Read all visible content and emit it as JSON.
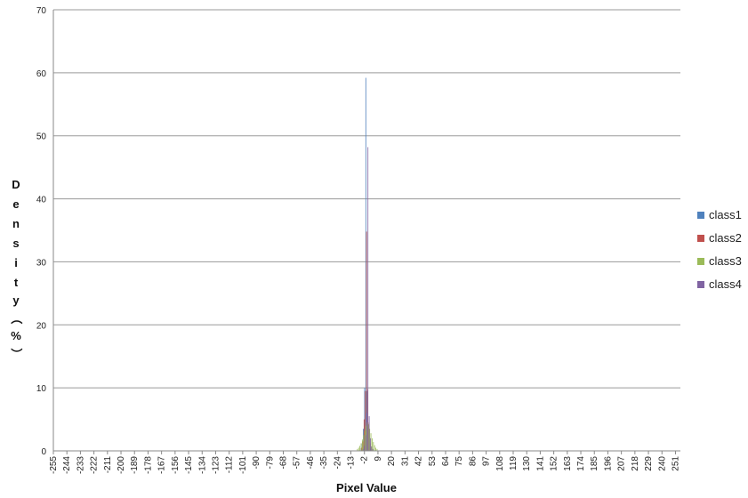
{
  "chart_data": {
    "type": "bar",
    "title": "",
    "xlabel": "Pixel Value",
    "ylabel": "Density（%）",
    "ylim": [
      0,
      70
    ],
    "yticks": [
      0,
      10,
      20,
      30,
      40,
      50,
      60,
      70
    ],
    "xlim": [
      -255,
      255
    ],
    "xtick_labels": [
      "-255",
      "-244",
      "-233",
      "-222",
      "-211",
      "-200",
      "-189",
      "-178",
      "-167",
      "-156",
      "-145",
      "-134",
      "-123",
      "-112",
      "-101",
      "-90",
      "-79",
      "-68",
      "-57",
      "-46",
      "-35",
      "-24",
      "-13",
      "-2",
      "9",
      "20",
      "31",
      "42",
      "53",
      "64",
      "75",
      "86",
      "97",
      "108",
      "119",
      "130",
      "141",
      "152",
      "163",
      "174",
      "185",
      "196",
      "207",
      "218",
      "229",
      "240",
      "251"
    ],
    "grid": true,
    "legend_position": "right",
    "series": [
      {
        "name": "class1",
        "color": "#4F81BD",
        "points": [
          [
            -4,
            0.4
          ],
          [
            -3,
            1.2
          ],
          [
            -2,
            3.5
          ],
          [
            -1,
            10.0
          ],
          [
            0,
            59.2
          ],
          [
            1,
            9.5
          ],
          [
            2,
            2.5
          ],
          [
            3,
            0.8
          ],
          [
            4,
            0.3
          ]
        ]
      },
      {
        "name": "class2",
        "color": "#C0504D",
        "points": [
          [
            -4,
            0.5
          ],
          [
            -3,
            1.5
          ],
          [
            -2,
            5.0
          ],
          [
            -1,
            9.5
          ],
          [
            0,
            34.8
          ],
          [
            1,
            9.8
          ],
          [
            2,
            4.5
          ],
          [
            3,
            1.2
          ],
          [
            4,
            0.4
          ]
        ]
      },
      {
        "name": "class3",
        "color": "#9BBB59",
        "points": [
          [
            -8,
            0.3
          ],
          [
            -7,
            0.5
          ],
          [
            -6,
            0.8
          ],
          [
            -5,
            1.2
          ],
          [
            -4,
            1.8
          ],
          [
            -3,
            2.5
          ],
          [
            -2,
            3.2
          ],
          [
            -1,
            4.0
          ],
          [
            0,
            4.5
          ],
          [
            1,
            4.2
          ],
          [
            2,
            3.5
          ],
          [
            3,
            2.8
          ],
          [
            4,
            2.0
          ],
          [
            5,
            1.4
          ],
          [
            6,
            0.9
          ],
          [
            7,
            0.5
          ],
          [
            8,
            0.3
          ]
        ]
      },
      {
        "name": "class4",
        "color": "#8064A2",
        "points": [
          [
            -4,
            0.3
          ],
          [
            -3,
            0.8
          ],
          [
            -2,
            2.5
          ],
          [
            -1,
            6.0
          ],
          [
            0,
            48.2
          ],
          [
            1,
            5.5
          ],
          [
            2,
            2.0
          ],
          [
            3,
            0.7
          ],
          [
            4,
            0.3
          ]
        ]
      }
    ]
  }
}
